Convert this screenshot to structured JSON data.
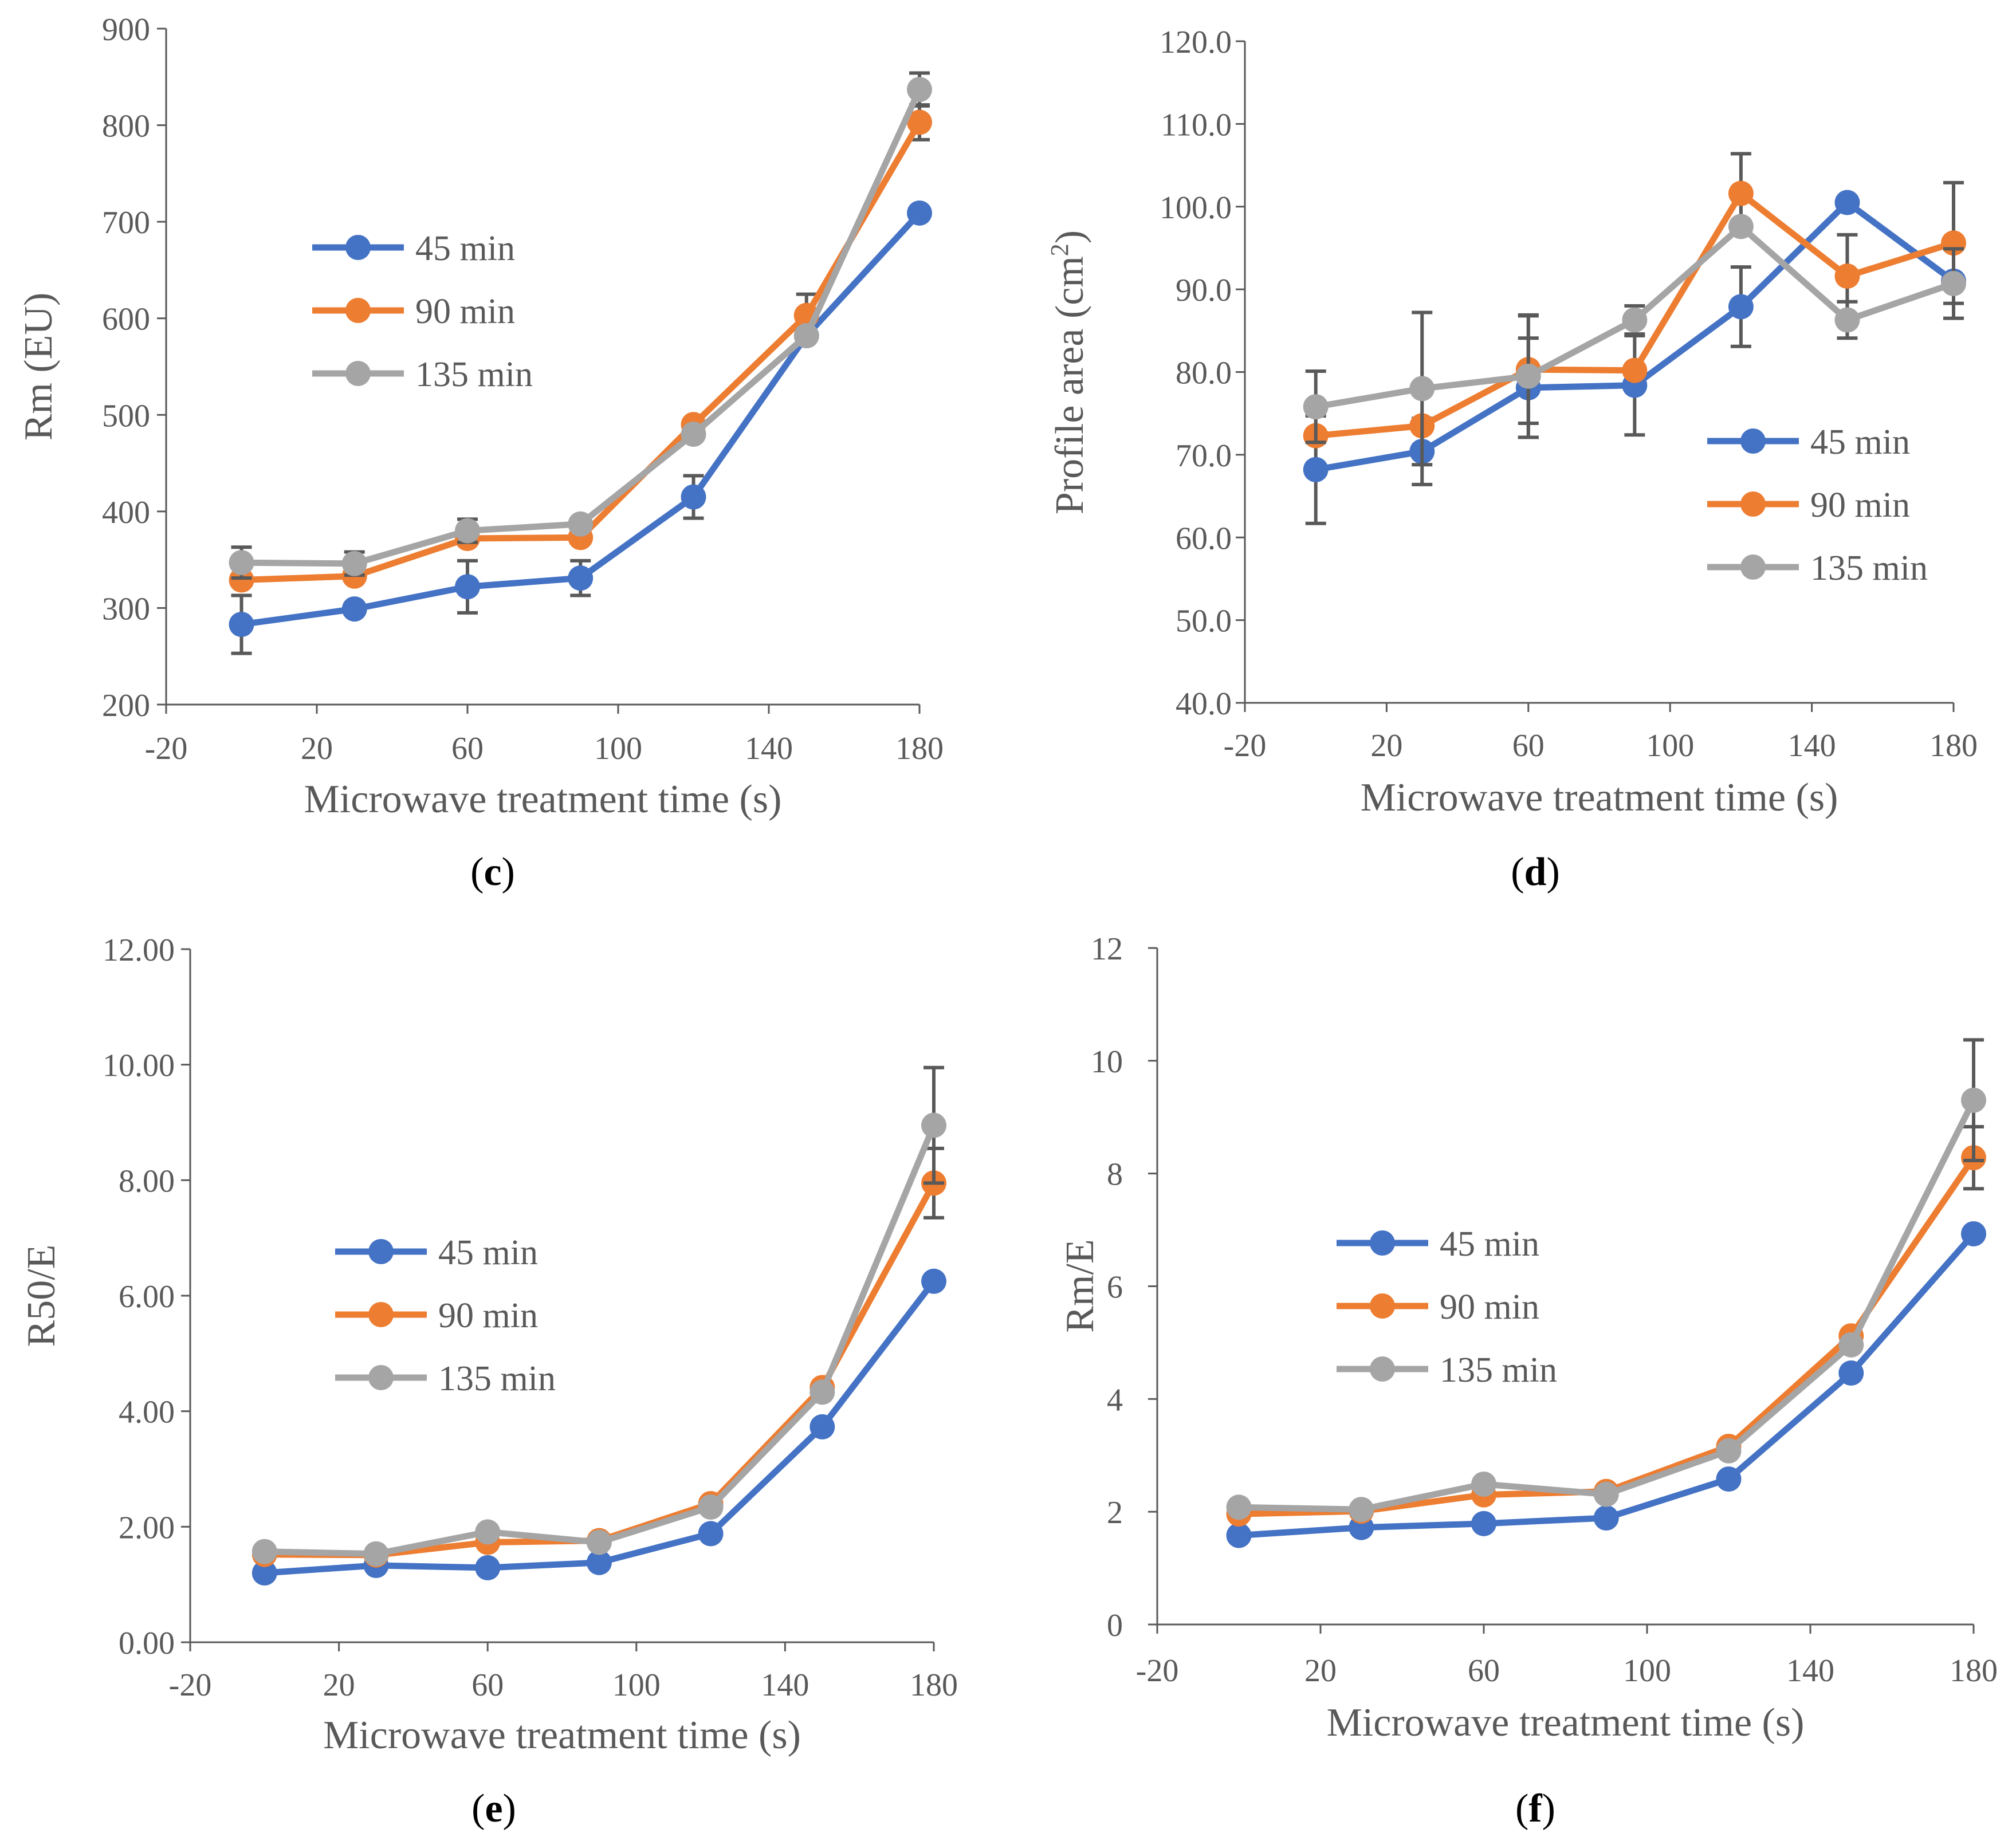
{
  "figure": {
    "panels": [
      {
        "id": "c",
        "label_prefix": "(",
        "label_letter": "c",
        "label_suffix": ")"
      },
      {
        "id": "d",
        "label_prefix": "(",
        "label_letter": "d",
        "label_suffix": ")"
      },
      {
        "id": "e",
        "label_prefix": "(",
        "label_letter": "e",
        "label_suffix": ")"
      },
      {
        "id": "f",
        "label_prefix": "(",
        "label_letter": "f",
        "label_suffix": ")"
      }
    ]
  },
  "colors": {
    "series_45": "#4472C4",
    "series_90": "#ED7D31",
    "series_135": "#A5A5A5",
    "axis": "#595959",
    "error_bar": "#595959"
  },
  "chart_data": [
    {
      "panel": "c",
      "type": "line",
      "xlabel": "Microwave treatment time (s)",
      "ylabel": "Rm (EU)",
      "ylabel_sup": "",
      "ylabel_end": "",
      "xlim": [
        -20,
        180
      ],
      "ylim": [
        200,
        900
      ],
      "xticks": [
        -20,
        20,
        60,
        100,
        140,
        180
      ],
      "xtick_labels": [
        "-20",
        "20",
        "60",
        "100",
        "140",
        "180"
      ],
      "yticks": [
        200,
        300,
        400,
        500,
        600,
        700,
        800,
        900
      ],
      "ytick_labels": [
        "200",
        "300",
        "400",
        "500",
        "600",
        "700",
        "800",
        "900"
      ],
      "x": [
        0,
        30,
        60,
        90,
        120,
        150,
        180
      ],
      "legend_position": "upper-left",
      "series": [
        {
          "name": "45 min",
          "color": "#4472C4",
          "values": [
            283,
            299,
            322,
            331,
            415,
            582,
            709
          ],
          "errors": [
            30,
            0,
            27,
            18,
            22,
            0,
            0
          ]
        },
        {
          "name": "90 min",
          "color": "#ED7D31",
          "values": [
            329,
            333,
            372,
            373,
            490,
            603,
            803
          ],
          "errors": [
            0,
            0,
            0,
            0,
            0,
            22,
            18
          ]
        },
        {
          "name": "135 min",
          "color": "#A5A5A5",
          "values": [
            347,
            346,
            380,
            387,
            480,
            582,
            837
          ],
          "errors": [
            16,
            12,
            12,
            0,
            0,
            0,
            17
          ]
        }
      ]
    },
    {
      "panel": "d",
      "type": "line",
      "xlabel": "Microwave treatment time (s)",
      "ylabel": "Profile area (cm",
      "ylabel_sup": "2",
      "ylabel_end": ")",
      "xlim": [
        -20,
        180
      ],
      "ylim": [
        40,
        120
      ],
      "xticks": [
        -20,
        20,
        60,
        100,
        140,
        180
      ],
      "xtick_labels": [
        "-20",
        "20",
        "60",
        "100",
        "140",
        "180"
      ],
      "yticks": [
        40,
        50,
        60,
        70,
        80,
        90,
        100,
        110,
        120
      ],
      "ytick_labels": [
        "40.0",
        "50.0",
        "60.0",
        "70.0",
        "80.0",
        "90.0",
        "100.0",
        "110.0",
        "120.0"
      ],
      "x": [
        0,
        30,
        60,
        90,
        120,
        150,
        180
      ],
      "legend_position": "lower-right",
      "series": [
        {
          "name": "45 min",
          "color": "#4472C4",
          "values": [
            68.2,
            70.4,
            78.1,
            78.4,
            87.9,
            100.5,
            91.0
          ],
          "errors": [
            6.5,
            4.0,
            6.0,
            6.0,
            4.8,
            0,
            0
          ]
        },
        {
          "name": "90 min",
          "color": "#ED7D31",
          "values": [
            72.3,
            73.5,
            80.3,
            80.2,
            101.6,
            91.6,
            95.6
          ],
          "errors": [
            0,
            0,
            6.5,
            0,
            4.8,
            5.0,
            7.3
          ]
        },
        {
          "name": "135 min",
          "color": "#A5A5A5",
          "values": [
            75.8,
            78.0,
            79.5,
            86.3,
            97.6,
            86.3,
            90.7
          ],
          "errors": [
            4.3,
            9.2,
            7.4,
            1.7,
            0,
            2.2,
            4.2
          ]
        }
      ]
    },
    {
      "panel": "e",
      "type": "line",
      "xlabel": "Microwave treatment time (s)",
      "ylabel": "R50/E",
      "ylabel_sup": "",
      "ylabel_end": "",
      "xlim": [
        -20,
        180
      ],
      "ylim": [
        0,
        12
      ],
      "xticks": [
        -20,
        20,
        60,
        100,
        140,
        180
      ],
      "xtick_labels": [
        "-20",
        "20",
        "60",
        "100",
        "140",
        "180"
      ],
      "yticks": [
        0,
        2,
        4,
        6,
        8,
        10,
        12
      ],
      "ytick_labels": [
        "0.00",
        "2.00",
        "4.00",
        "6.00",
        "8.00",
        "10.00",
        "12.00"
      ],
      "x": [
        0,
        30,
        60,
        90,
        120,
        150,
        180
      ],
      "legend_position": "middle-left",
      "series": [
        {
          "name": "45 min",
          "color": "#4472C4",
          "values": [
            1.2,
            1.33,
            1.29,
            1.38,
            1.88,
            3.73,
            6.25
          ],
          "errors": [
            0,
            0,
            0,
            0,
            0,
            0,
            0
          ]
        },
        {
          "name": "90 min",
          "color": "#ED7D31",
          "values": [
            1.52,
            1.51,
            1.73,
            1.76,
            2.4,
            4.41,
            7.95
          ],
          "errors": [
            0,
            0,
            0,
            0,
            0,
            0,
            0.6
          ]
        },
        {
          "name": "135 min",
          "color": "#A5A5A5",
          "values": [
            1.57,
            1.53,
            1.91,
            1.73,
            2.34,
            4.33,
            8.95
          ],
          "errors": [
            0,
            0,
            0,
            0,
            0,
            0,
            1.0
          ]
        }
      ]
    },
    {
      "panel": "f",
      "type": "line",
      "xlabel": "Microwave treatment time (s)",
      "ylabel": "Rm/E",
      "ylabel_sup": "",
      "ylabel_end": "",
      "xlim": [
        -20,
        180
      ],
      "ylim": [
        0,
        12
      ],
      "xticks": [
        -20,
        20,
        60,
        100,
        140,
        180
      ],
      "xtick_labels": [
        "-20",
        "20",
        "60",
        "100",
        "140",
        "180"
      ],
      "yticks": [
        0,
        2,
        4,
        6,
        8,
        10,
        12
      ],
      "ytick_labels": [
        "0",
        "2",
        "4",
        "6",
        "8",
        "10",
        "12"
      ],
      "x": [
        0,
        30,
        60,
        90,
        120,
        150,
        180
      ],
      "legend_position": "middle-left",
      "series": [
        {
          "name": "45 min",
          "color": "#4472C4",
          "values": [
            1.58,
            1.72,
            1.79,
            1.89,
            2.58,
            4.46,
            6.93
          ],
          "errors": [
            0,
            0,
            0,
            0,
            0,
            0,
            0
          ]
        },
        {
          "name": "90 min",
          "color": "#ED7D31",
          "values": [
            1.96,
            2.01,
            2.3,
            2.36,
            3.16,
            5.12,
            8.28
          ],
          "errors": [
            0,
            0,
            0,
            0,
            0,
            0,
            0.55
          ]
        },
        {
          "name": "135 min",
          "color": "#A5A5A5",
          "values": [
            2.08,
            2.04,
            2.49,
            2.31,
            3.08,
            4.96,
            9.3
          ],
          "errors": [
            0,
            0,
            0,
            0,
            0,
            0,
            1.07
          ]
        }
      ]
    }
  ]
}
